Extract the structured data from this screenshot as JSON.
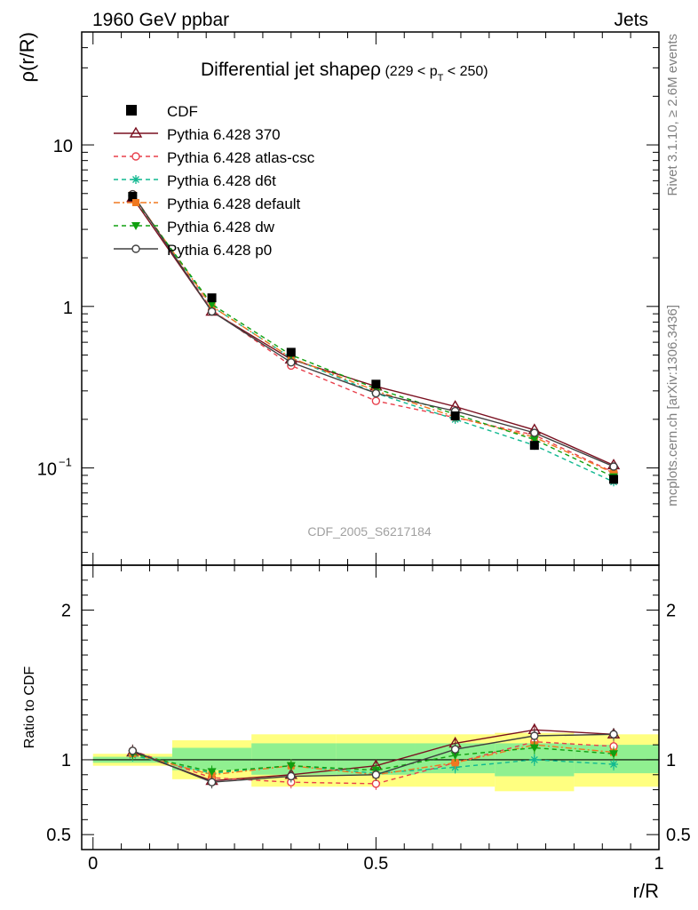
{
  "header": {
    "left": "1960 GeV ppbar",
    "right": "Jets"
  },
  "side_labels": {
    "rivet": "Rivet 3.1.10, ≥ 2.6M events",
    "mcplots": "mcplots.cern.ch [arXiv:1306.3436]"
  },
  "watermark": "CDF_2005_S6217184",
  "colors": {
    "CDF": "#000000",
    "p370": "#7a1020",
    "atlas": "#e8404c",
    "d6t": "#10b890",
    "default": "#f07820",
    "dw": "#10a010",
    "p0": "#404040",
    "band_outer": "#ffff80",
    "band_inner": "#90f090"
  },
  "chart_data": [
    {
      "type": "line",
      "panel": "main",
      "title": "Differential jet shapeρ",
      "title_suffix": "(229 < p",
      "title_sub": "T",
      "title_end": " < 250)",
      "ylabel": "ρ(r/R)",
      "yscale": "log",
      "ylim": [
        0.025,
        50
      ],
      "xlim": [
        -0.02,
        1.0
      ],
      "ytick_labels": [
        {
          "value": 0.1,
          "base": "10",
          "exp": "−1"
        },
        {
          "value": 1,
          "base": "1",
          "exp": ""
        },
        {
          "value": 10,
          "base": "10",
          "exp": ""
        }
      ],
      "legend_position": "top-left",
      "x": [
        0.07,
        0.21,
        0.35,
        0.5,
        0.64,
        0.78,
        0.92
      ],
      "data": {
        "name": "CDF",
        "values": [
          4.8,
          1.13,
          0.52,
          0.33,
          0.21,
          0.138,
          0.085
        ]
      },
      "series": [
        {
          "name": "Pythia 6.428 370",
          "key": "p370",
          "dash": "",
          "marker": "triangle-open",
          "values": [
            4.7,
            0.93,
            0.47,
            0.32,
            0.24,
            0.172,
            0.104
          ]
        },
        {
          "name": "Pythia 6.428 atlas-csc",
          "key": "atlas",
          "dash": "5,4",
          "marker": "circle-open",
          "values": [
            4.95,
            0.95,
            0.43,
            0.26,
            0.205,
            0.16,
            0.094
          ]
        },
        {
          "name": "Pythia 6.428 d6t",
          "key": "d6t",
          "dash": "5,4",
          "marker": "star",
          "values": [
            4.85,
            1.0,
            0.48,
            0.29,
            0.2,
            0.138,
            0.082
          ]
        },
        {
          "name": "Pythia 6.428 default",
          "key": "default",
          "dash": "7,3,2,3",
          "marker": "square",
          "values": [
            4.9,
            1.0,
            0.48,
            0.3,
            0.207,
            0.155,
            0.093
          ]
        },
        {
          "name": "Pythia 6.428 dw",
          "key": "dw",
          "dash": "5,4",
          "marker": "triangle-down",
          "values": [
            4.8,
            1.03,
            0.5,
            0.31,
            0.215,
            0.15,
            0.088
          ]
        },
        {
          "name": "Pythia 6.428 p0",
          "key": "p0",
          "dash": "",
          "marker": "circle-open",
          "values": [
            4.95,
            0.93,
            0.45,
            0.29,
            0.225,
            0.165,
            0.102
          ]
        }
      ]
    },
    {
      "type": "line",
      "panel": "ratio",
      "ylabel": "Ratio to CDF",
      "ylim": [
        0.4,
        2.3
      ],
      "xlim": [
        -0.02,
        1.0
      ],
      "xlabel": "r/R",
      "xtick_labels": [
        {
          "value": 0,
          "label": "0"
        },
        {
          "value": 0.5,
          "label": "0.5"
        },
        {
          "value": 1,
          "label": "1"
        }
      ],
      "ytick_labels": [
        {
          "value": 0.5,
          "label": "0.5"
        },
        {
          "value": 1,
          "label": "1"
        },
        {
          "value": 2,
          "label": "2"
        }
      ],
      "bins": [
        [
          0.0,
          0.14
        ],
        [
          0.14,
          0.28
        ],
        [
          0.28,
          0.43
        ],
        [
          0.43,
          0.57
        ],
        [
          0.57,
          0.71
        ],
        [
          0.71,
          0.85
        ],
        [
          0.85,
          1.0
        ]
      ],
      "band_outer": [
        [
          0.96,
          1.04
        ],
        [
          0.87,
          1.13
        ],
        [
          0.82,
          1.17
        ],
        [
          0.82,
          1.17
        ],
        [
          0.82,
          1.17
        ],
        [
          0.79,
          1.18
        ],
        [
          0.82,
          1.17
        ]
      ],
      "band_inner": [
        [
          0.98,
          1.02
        ],
        [
          0.93,
          1.08
        ],
        [
          0.9,
          1.11
        ],
        [
          0.9,
          1.11
        ],
        [
          0.91,
          1.11
        ],
        [
          0.89,
          1.11
        ],
        [
          0.91,
          1.1
        ]
      ],
      "x": [
        0.07,
        0.21,
        0.35,
        0.5,
        0.64,
        0.78,
        0.92
      ],
      "series": [
        {
          "key": "p370",
          "values": [
            1.05,
            0.86,
            0.9,
            0.96,
            1.11,
            1.2,
            1.17
          ]
        },
        {
          "key": "atlas",
          "values": [
            1.06,
            0.88,
            0.85,
            0.84,
            0.98,
            1.12,
            1.09
          ]
        },
        {
          "key": "d6t",
          "values": [
            1.03,
            0.91,
            0.96,
            0.91,
            0.95,
            1.0,
            0.97
          ]
        },
        {
          "key": "default",
          "values": [
            1.04,
            0.9,
            0.96,
            0.9,
            0.98,
            1.1,
            1.05
          ]
        },
        {
          "key": "dw",
          "values": [
            1.04,
            0.92,
            0.96,
            0.93,
            1.03,
            1.08,
            1.04
          ]
        },
        {
          "key": "p0",
          "values": [
            1.06,
            0.85,
            0.89,
            0.9,
            1.07,
            1.16,
            1.17
          ]
        }
      ]
    }
  ]
}
